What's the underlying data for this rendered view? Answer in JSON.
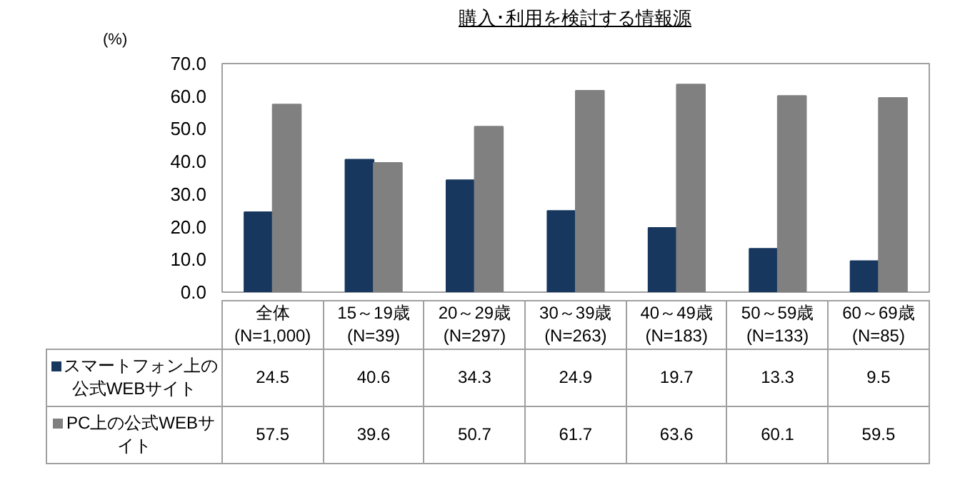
{
  "chart_data": {
    "type": "bar",
    "title": "購入･利用を検討する情報源",
    "ylabel": "(%)",
    "categories": [
      "全体\n(N=1,000)",
      "15～19歳\n(N=39)",
      "20～29歳\n(N=297)",
      "30～39歳\n(N=263)",
      "40～49歳\n(N=183)",
      "50～59歳\n(N=133)",
      "60～69歳\n(N=85)"
    ],
    "series": [
      {
        "name": "スマートフォン上の公式WEBサイト",
        "color": "#17375e",
        "values": [
          24.5,
          40.6,
          34.3,
          24.9,
          19.7,
          13.3,
          9.5
        ]
      },
      {
        "name": "PC上の公式WEBサイト",
        "color": "#808080",
        "values": [
          57.5,
          39.6,
          50.7,
          61.7,
          63.6,
          60.1,
          59.5
        ]
      }
    ],
    "ylim": [
      0,
      70
    ],
    "yticks": [
      {
        "value": 0,
        "label": "0.0"
      },
      {
        "value": 10,
        "label": "10.0"
      },
      {
        "value": 20,
        "label": "20.0"
      },
      {
        "value": 30,
        "label": "30.0"
      },
      {
        "value": 40,
        "label": "40.0"
      },
      {
        "value": 50,
        "label": "50.0"
      },
      {
        "value": 60,
        "label": "60.0"
      },
      {
        "value": 70,
        "label": "70.0"
      }
    ],
    "grid": false,
    "legend": "bottom left",
    "data_labels": true
  }
}
